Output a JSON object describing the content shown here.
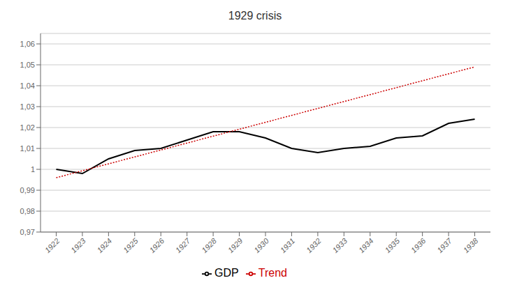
{
  "chart_data": {
    "type": "line",
    "title": "1929 crisis",
    "series": [
      {
        "name": "GDP",
        "color": "#000000",
        "line_style": "solid",
        "x": [
          1922,
          1923,
          1924,
          1925,
          1926,
          1927,
          1928,
          1929,
          1930,
          1931,
          1932,
          1933,
          1934,
          1935,
          1936,
          1937,
          1938
        ],
        "values": [
          1.0,
          0.998,
          1.005,
          1.009,
          1.01,
          1.014,
          1.018,
          1.018,
          1.015,
          1.01,
          1.008,
          1.01,
          1.011,
          1.015,
          1.016,
          1.022,
          1.024
        ]
      },
      {
        "name": "Trend",
        "color": "#cc0000",
        "line_style": "dotted",
        "x": [
          1922,
          1938
        ],
        "values": [
          0.996,
          1.049
        ]
      }
    ],
    "xlim": [
      1921.4,
      1938.6
    ],
    "xticks": [
      1922,
      1923,
      1924,
      1925,
      1926,
      1927,
      1928,
      1929,
      1930,
      1931,
      1932,
      1933,
      1934,
      1935,
      1936,
      1937,
      1938
    ],
    "ylim": [
      0.97,
      1.065
    ],
    "yticks": [
      {
        "value": 0.97,
        "label": "0,97"
      },
      {
        "value": 0.98,
        "label": "0,98"
      },
      {
        "value": 0.99,
        "label": "0,99"
      },
      1,
      {
        "value": 1.01,
        "label": "1,01"
      },
      {
        "value": 1.02,
        "label": "1,02"
      },
      {
        "value": 1.03,
        "label": "1,03"
      },
      {
        "value": 1.04,
        "label": "1,04"
      },
      {
        "value": 1.05,
        "label": "1,05"
      },
      {
        "value": 1.06,
        "label": "1,06"
      }
    ],
    "grid": "y",
    "legend": "bottom"
  }
}
